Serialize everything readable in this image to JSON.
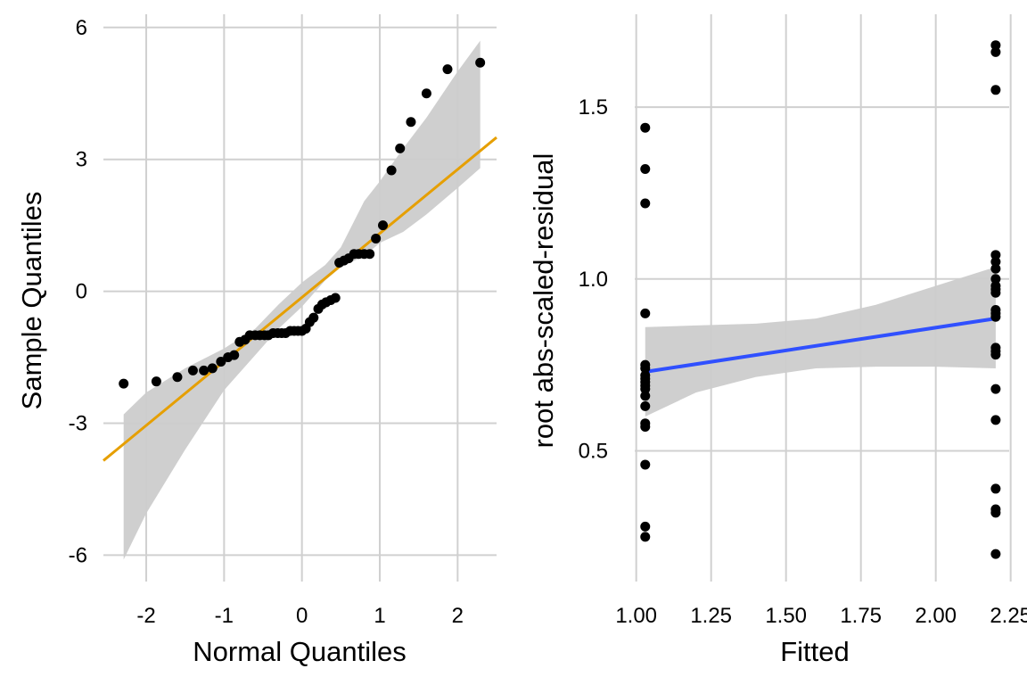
{
  "chart_data": [
    {
      "type": "scatter",
      "panel": "qq",
      "xlabel": "Normal Quantiles",
      "ylabel": "Sample Quantiles",
      "xlim": [
        -2.55,
        2.5
      ],
      "ylim": [
        -6.6,
        6.3
      ],
      "x_ticks": [
        -2,
        -1,
        0,
        1,
        2
      ],
      "x_tick_labels": [
        "-2",
        "-1",
        "0",
        "1",
        "2"
      ],
      "y_ticks": [
        -6,
        -3,
        0,
        3,
        6
      ],
      "y_tick_labels": [
        "-6",
        "-3",
        "0",
        "3",
        "6"
      ],
      "grid": true,
      "colors": {
        "points": "#000000",
        "reference_line": "#e69f00",
        "band": "#cccccc"
      },
      "series": [
        {
          "kind": "points",
          "x": [
            -2.29,
            -1.87,
            -1.6,
            -1.4,
            -1.26,
            -1.15,
            -1.04,
            -0.95,
            -0.87,
            -0.8,
            -0.73,
            -0.67,
            -0.6,
            -0.54,
            -0.48,
            -0.43,
            -0.37,
            -0.31,
            -0.26,
            -0.21,
            -0.15,
            -0.1,
            -0.05,
            0.0,
            0.05,
            0.1,
            0.15,
            0.21,
            0.26,
            0.31,
            0.37,
            0.43,
            0.48,
            0.54,
            0.6,
            0.67,
            0.73,
            0.8,
            0.87,
            0.95,
            1.04,
            1.15,
            1.26,
            1.4,
            1.6,
            1.87,
            2.29
          ],
          "y": [
            -2.1,
            -2.05,
            -1.95,
            -1.8,
            -1.8,
            -1.75,
            -1.6,
            -1.5,
            -1.45,
            -1.15,
            -1.1,
            -1.0,
            -1.0,
            -1.0,
            -1.0,
            -1.0,
            -0.95,
            -0.95,
            -0.95,
            -0.95,
            -0.9,
            -0.9,
            -0.9,
            -0.9,
            -0.85,
            -0.7,
            -0.6,
            -0.4,
            -0.3,
            -0.25,
            -0.2,
            -0.15,
            0.65,
            0.7,
            0.75,
            0.85,
            0.85,
            0.85,
            0.85,
            1.2,
            1.5,
            2.75,
            3.25,
            3.85,
            4.5,
            5.05,
            5.2
          ]
        },
        {
          "kind": "reference-line",
          "x": [
            -2.55,
            2.5
          ],
          "y": [
            -3.85,
            3.5
          ]
        },
        {
          "kind": "confidence-band",
          "x": [
            -2.29,
            -2.0,
            -1.5,
            -1.0,
            -0.6,
            -0.3,
            0.0,
            0.3,
            0.5,
            0.8,
            1.0,
            1.3,
            1.6,
            2.0,
            2.29
          ],
          "lower": [
            -6.1,
            -5.05,
            -3.6,
            -2.25,
            -1.45,
            -0.85,
            -0.35,
            0.25,
            0.55,
            0.8,
            1.1,
            1.35,
            1.75,
            2.35,
            2.8
          ],
          "upper": [
            -2.8,
            -2.3,
            -1.75,
            -1.3,
            -0.85,
            -0.3,
            0.2,
            0.6,
            1.0,
            2.05,
            2.5,
            3.25,
            3.95,
            5.0,
            5.7
          ]
        }
      ]
    },
    {
      "type": "scatter",
      "panel": "scale-location",
      "xlabel": "Fitted",
      "ylabel": "root abs-scaled-residual",
      "xlim": [
        0.995,
        2.245
      ],
      "ylim": [
        0.12,
        1.77
      ],
      "x_ticks": [
        1.0,
        1.25,
        1.5,
        1.75,
        2.0,
        2.25
      ],
      "x_tick_labels": [
        "1.00",
        "1.25",
        "1.50",
        "1.75",
        "2.00",
        "2.25"
      ],
      "y_ticks": [
        0.5,
        1.0,
        1.5
      ],
      "y_tick_labels": [
        "0.5",
        "1.0",
        "1.5"
      ],
      "grid": true,
      "colors": {
        "points": "#000000",
        "smooth_line": "#3050ff",
        "band": "#cccccc"
      },
      "series": [
        {
          "kind": "points",
          "x": [
            1.03,
            1.03,
            1.03,
            1.03,
            1.03,
            1.03,
            1.03,
            1.03,
            1.03,
            1.03,
            1.03,
            1.03,
            1.03,
            1.03,
            1.03,
            1.03,
            1.03,
            1.03,
            2.2,
            2.2,
            2.2,
            2.2,
            2.2,
            2.2,
            2.2,
            2.2,
            2.2,
            2.2,
            2.2,
            2.2,
            2.2,
            2.2,
            2.2,
            2.2,
            2.2,
            2.2,
            2.2,
            2.2,
            2.2,
            2.2
          ],
          "y": [
            1.44,
            1.32,
            1.22,
            0.9,
            0.75,
            0.74,
            0.72,
            0.71,
            0.7,
            0.69,
            0.68,
            0.66,
            0.63,
            0.58,
            0.57,
            0.46,
            0.28,
            0.25,
            1.68,
            1.66,
            1.55,
            1.07,
            1.05,
            1.03,
            1.0,
            0.98,
            0.97,
            0.96,
            0.91,
            0.9,
            0.89,
            0.8,
            0.79,
            0.78,
            0.68,
            0.59,
            0.39,
            0.33,
            0.32,
            0.2
          ]
        },
        {
          "kind": "smooth-line",
          "x": [
            1.03,
            2.2
          ],
          "y": [
            0.73,
            0.885
          ]
        },
        {
          "kind": "confidence-band",
          "x": [
            1.03,
            1.2,
            1.4,
            1.6,
            1.8,
            2.0,
            2.2
          ],
          "lower": [
            0.6,
            0.67,
            0.715,
            0.74,
            0.745,
            0.745,
            0.74
          ],
          "upper": [
            0.86,
            0.865,
            0.87,
            0.885,
            0.925,
            0.98,
            1.035
          ]
        }
      ]
    }
  ]
}
